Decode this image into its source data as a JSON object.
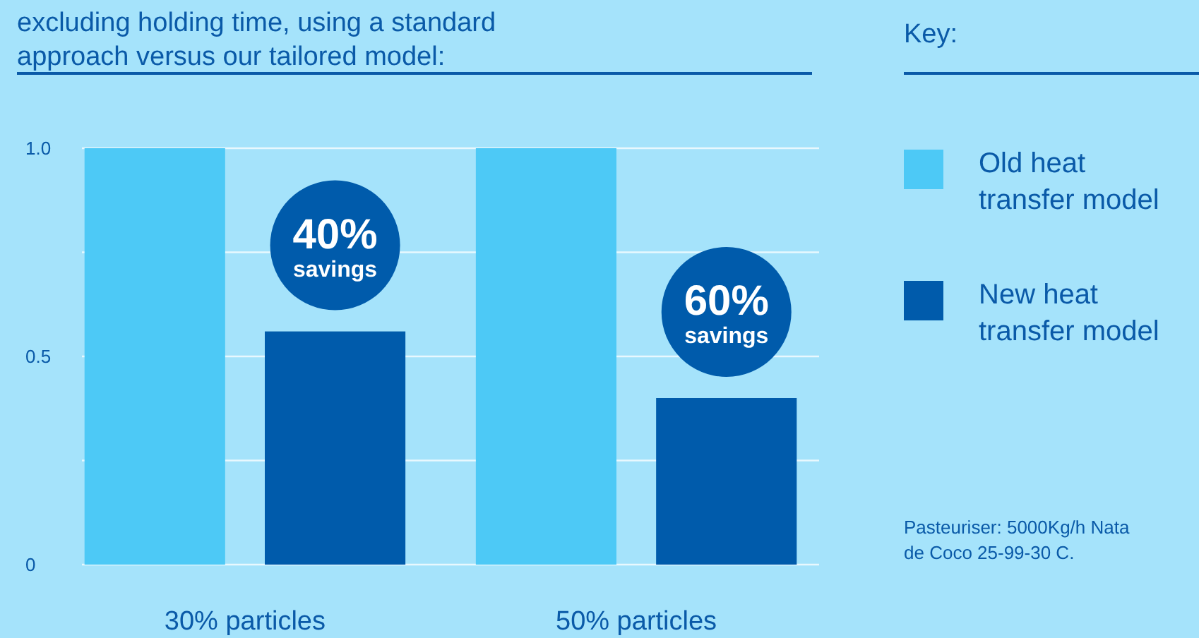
{
  "chart_data": {
    "type": "bar",
    "title": "excluding holding time, using a standard approach versus our tailored model:",
    "legend_title": "Key:",
    "categories": [
      "30% particles",
      "50% particles"
    ],
    "series": [
      {
        "name": "Old heat transfer model",
        "color": "#4dc9f6",
        "values": [
          1.0,
          1.0
        ]
      },
      {
        "name": "New heat transfer model",
        "color": "#005bab",
        "values": [
          0.56,
          0.4
        ]
      }
    ],
    "ylim": [
      0,
      1.0
    ],
    "yticks": [
      0,
      {
        "value": 0.25,
        "label": null
      },
      {
        "value": 0.5,
        "label": "0.5"
      },
      {
        "value": 0.75,
        "label": null
      },
      {
        "value": 1.0,
        "label": "1.0"
      }
    ],
    "grid": "y",
    "legend": "right",
    "annotations": [
      "40% savings",
      "60% savings",
      "Pasteuriser: 5000Kg/h Nata de Coco 25-99-30 C."
    ]
  }
}
